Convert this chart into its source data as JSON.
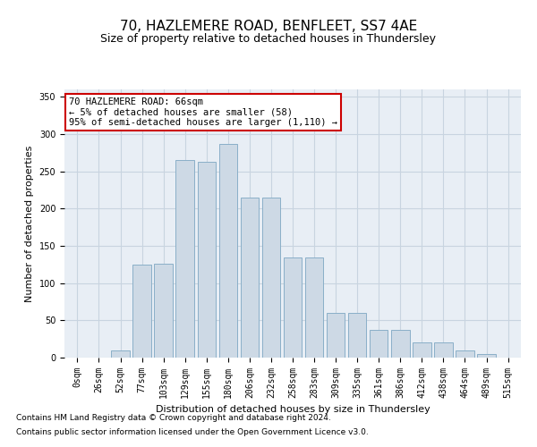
{
  "title": "70, HAZLEMERE ROAD, BENFLEET, SS7 4AE",
  "subtitle": "Size of property relative to detached houses in Thundersley",
  "xlabel": "Distribution of detached houses by size in Thundersley",
  "ylabel": "Number of detached properties",
  "footnote1": "Contains HM Land Registry data © Crown copyright and database right 2024.",
  "footnote2": "Contains public sector information licensed under the Open Government Licence v3.0.",
  "annotation_line1": "70 HAZLEMERE ROAD: 66sqm",
  "annotation_line2": "← 5% of detached houses are smaller (58)",
  "annotation_line3": "95% of semi-detached houses are larger (1,110) →",
  "bar_color": "#cdd9e5",
  "bar_edge_color": "#8aafc8",
  "annotation_box_edge": "#cc0000",
  "grid_color": "#c8d4e0",
  "bg_color": "#e8eef5",
  "categories": [
    "0sqm",
    "26sqm",
    "52sqm",
    "77sqm",
    "103sqm",
    "129sqm",
    "155sqm",
    "180sqm",
    "206sqm",
    "232sqm",
    "258sqm",
    "283sqm",
    "309sqm",
    "335sqm",
    "361sqm",
    "386sqm",
    "412sqm",
    "438sqm",
    "464sqm",
    "489sqm",
    "515sqm"
  ],
  "values": [
    0,
    0,
    10,
    125,
    126,
    265,
    263,
    287,
    215,
    215,
    135,
    135,
    60,
    60,
    37,
    37,
    20,
    20,
    10,
    5,
    0
  ],
  "ylim": [
    0,
    360
  ],
  "yticks": [
    0,
    50,
    100,
    150,
    200,
    250,
    300,
    350
  ],
  "title_fontsize": 11,
  "subtitle_fontsize": 9,
  "axis_label_fontsize": 8,
  "tick_fontsize": 7,
  "annotation_fontsize": 7.5,
  "footnote_fontsize": 6.5
}
